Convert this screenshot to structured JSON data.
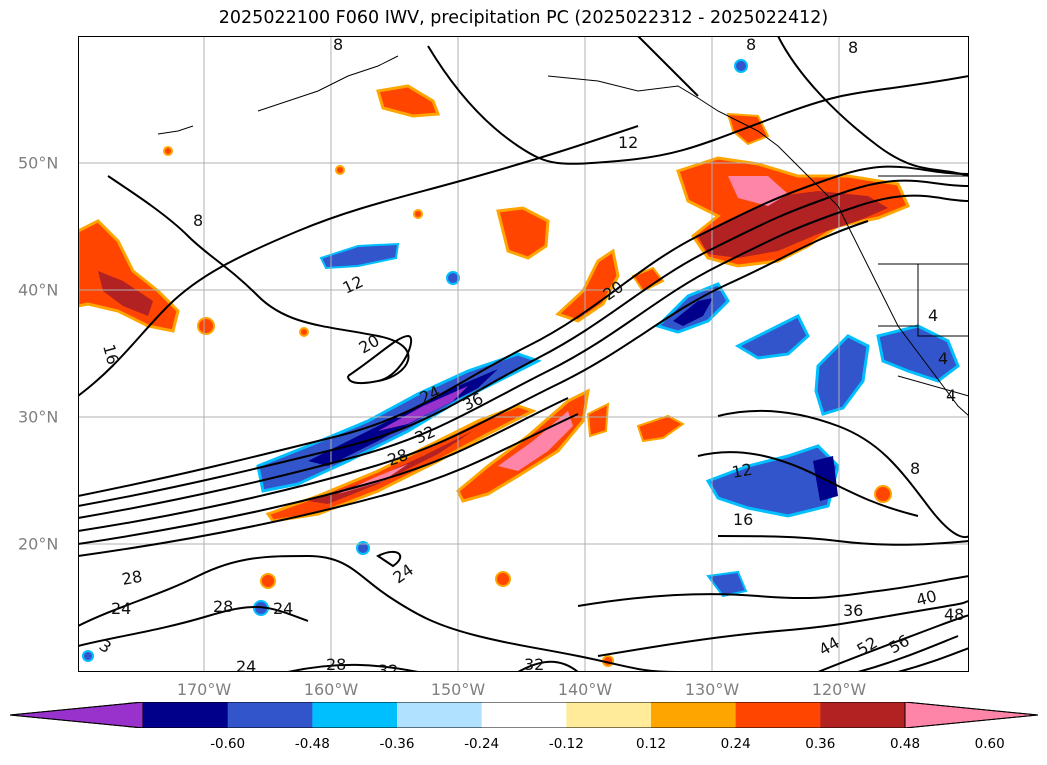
{
  "title": "2025022100 F060 IWV, precipitation PC (2025022312 - 2025022412)",
  "lon_labels": [
    "170°W",
    "160°W",
    "150°W",
    "140°W",
    "130°W",
    "120°W"
  ],
  "lat_labels": [
    "50°N",
    "40°N",
    "30°N",
    "20°N"
  ],
  "colorbar": {
    "colors": [
      "#9932cc",
      "#00008b",
      "#3355cc",
      "#00bfff",
      "#b0e2ff",
      "#ffffff",
      "#ffeb99",
      "#ffa500",
      "#ff4500",
      "#b22222",
      "#ff85a8"
    ],
    "ticks": [
      "-0.60",
      "-0.48",
      "-0.36",
      "-0.24",
      "-0.12",
      "0.12",
      "0.24",
      "0.36",
      "0.48",
      "0.60"
    ]
  },
  "contour_labels": [
    "8",
    "8",
    "8",
    "12",
    "8",
    "12",
    "20",
    "16",
    "20",
    "24",
    "36",
    "32",
    "28",
    "12",
    "16",
    "28",
    "24",
    "24",
    "28",
    "24",
    "3",
    "24",
    "28",
    "32",
    "32",
    "36",
    "40",
    "48",
    "44",
    "52",
    "56",
    "4",
    "4",
    "4",
    "8"
  ],
  "colors": {
    "contour": "#000000",
    "grid": "#b0b0b0",
    "axis_label": "#808080"
  }
}
